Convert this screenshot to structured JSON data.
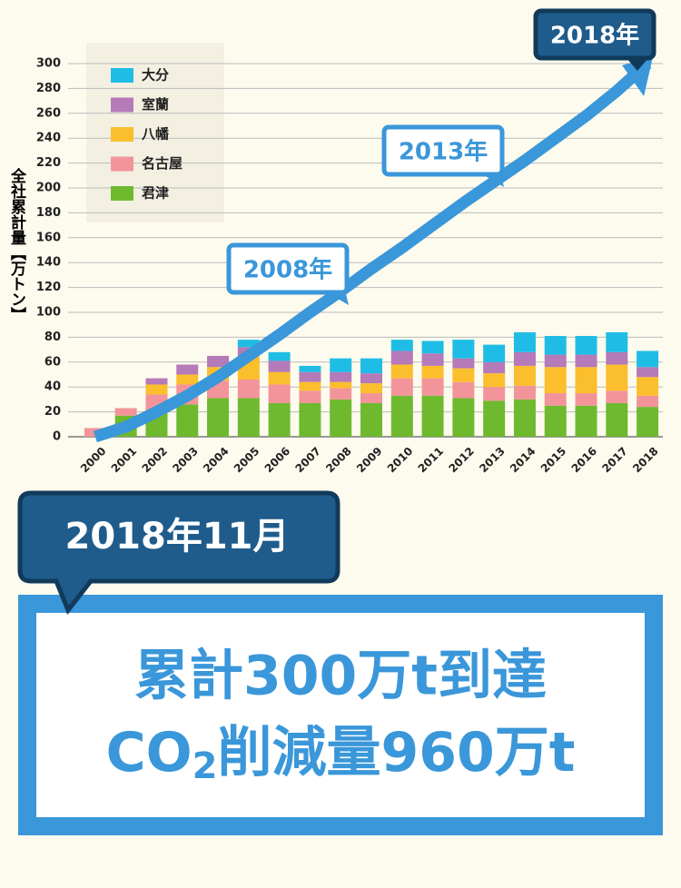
{
  "chart_data": {
    "type": "bar",
    "stacked": true,
    "y_label": "全社累計量【万トン】",
    "categories": [
      "2000",
      "2001",
      "2002",
      "2003",
      "2004",
      "2005",
      "2006",
      "2007",
      "2008",
      "2009",
      "2010",
      "2011",
      "2012",
      "2013",
      "2014",
      "2015",
      "2016",
      "2017",
      "2018"
    ],
    "series": [
      {
        "name": "君津",
        "color": "#6fb92e",
        "values": [
          0,
          17,
          20,
          26,
          31,
          31,
          27,
          27,
          30,
          27,
          33,
          33,
          31,
          29,
          30,
          25,
          25,
          27,
          24
        ]
      },
      {
        "name": "名古屋",
        "color": "#f29499",
        "values": [
          7,
          6,
          14,
          16,
          14,
          15,
          15,
          10,
          9,
          8,
          14,
          14,
          13,
          11,
          11,
          10,
          10,
          10,
          9
        ]
      },
      {
        "name": "八幡",
        "color": "#fbbe2c",
        "values": [
          0,
          0,
          8,
          8,
          11,
          19,
          10,
          7,
          5,
          8,
          11,
          10,
          11,
          11,
          16,
          21,
          21,
          21,
          15
        ]
      },
      {
        "name": "室蘭",
        "color": "#b57ab8",
        "values": [
          0,
          0,
          5,
          8,
          9,
          7,
          9,
          8,
          8,
          8,
          11,
          10,
          8,
          9,
          11,
          10,
          10,
          10,
          8
        ]
      },
      {
        "name": "大分",
        "color": "#1fbde6",
        "values": [
          0,
          0,
          0,
          0,
          0,
          6,
          7,
          5,
          11,
          12,
          9,
          10,
          15,
          14,
          16,
          15,
          15,
          16,
          13
        ]
      }
    ],
    "cumulative": {
      "color": "#3a97d9",
      "values": [
        0,
        8,
        20,
        33,
        48,
        65,
        82,
        100,
        117,
        135,
        152,
        170,
        188,
        205,
        222,
        240,
        258,
        278,
        300
      ]
    },
    "annotations": [
      "2008年",
      "2013年",
      "2018年"
    ],
    "ylim": [
      0,
      300
    ],
    "yticks": [
      0,
      20,
      40,
      60,
      80,
      100,
      120,
      140,
      160,
      180,
      200,
      220,
      240,
      260,
      280,
      300
    ],
    "grid": true
  },
  "callout": {
    "date": "2018年11月",
    "line1": "累計300万t到達",
    "line2_pre": "CO",
    "line2_sub": "2",
    "line2_post": "削減量960万t"
  }
}
